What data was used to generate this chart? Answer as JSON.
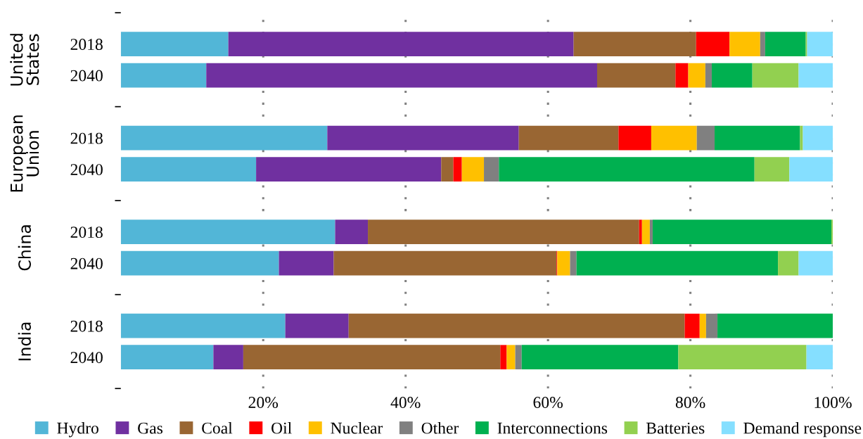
{
  "chart_data": {
    "type": "bar",
    "orientation": "horizontal",
    "stacked": true,
    "categories": [
      "2018",
      "2040",
      "2018",
      "2040",
      "2018",
      "2040",
      "2018",
      "2040"
    ],
    "annotations": [
      "United\nStates",
      "European\nUnion",
      "China",
      "India"
    ],
    "xlim": [
      0,
      100
    ],
    "xticks": [
      {
        "value": 20,
        "label": "20%"
      },
      {
        "value": 40,
        "label": "40%"
      },
      {
        "value": 60,
        "label": "60%"
      },
      {
        "value": 80,
        "label": "80%"
      },
      {
        "value": 100,
        "label": "100%"
      }
    ],
    "grid": "x",
    "legend": "bottom",
    "series": [
      {
        "name": "Hydro",
        "color": "#52b6d7",
        "values": [
          15.1,
          12.0,
          29.0,
          19.0,
          30.1,
          22.2,
          23.1,
          13.0
        ]
      },
      {
        "name": "Gas",
        "color": "#7030a0",
        "values": [
          48.5,
          54.9,
          26.9,
          26.0,
          4.6,
          7.7,
          8.9,
          4.2
        ]
      },
      {
        "name": "Coal",
        "color": "#996633",
        "values": [
          17.2,
          11.0,
          14.0,
          1.7,
          38.1,
          31.3,
          47.2,
          36.1
        ]
      },
      {
        "name": "Oil",
        "color": "#ff0000",
        "values": [
          4.7,
          1.8,
          4.6,
          1.2,
          0.4,
          0.1,
          2.1,
          0.9
        ]
      },
      {
        "name": "Nuclear",
        "color": "#ffc000",
        "values": [
          4.3,
          2.4,
          6.4,
          3.1,
          1.1,
          1.8,
          0.9,
          1.2
        ]
      },
      {
        "name": "Other",
        "color": "#808080",
        "values": [
          0.7,
          0.9,
          2.5,
          2.1,
          0.4,
          0.9,
          1.6,
          0.9
        ]
      },
      {
        "name": "Interconnections",
        "color": "#00b050",
        "values": [
          5.7,
          5.7,
          12.0,
          35.9,
          25.1,
          28.3,
          16.2,
          22.0
        ]
      },
      {
        "name": "Batteries",
        "color": "#92d050",
        "values": [
          0.2,
          6.5,
          0.4,
          4.9,
          0.2,
          2.9,
          0,
          18.0
        ]
      },
      {
        "name": "Demand response",
        "color": "#85dfff",
        "values": [
          3.6,
          4.8,
          4.2,
          6.1,
          0,
          4.8,
          0,
          3.7
        ]
      }
    ]
  }
}
